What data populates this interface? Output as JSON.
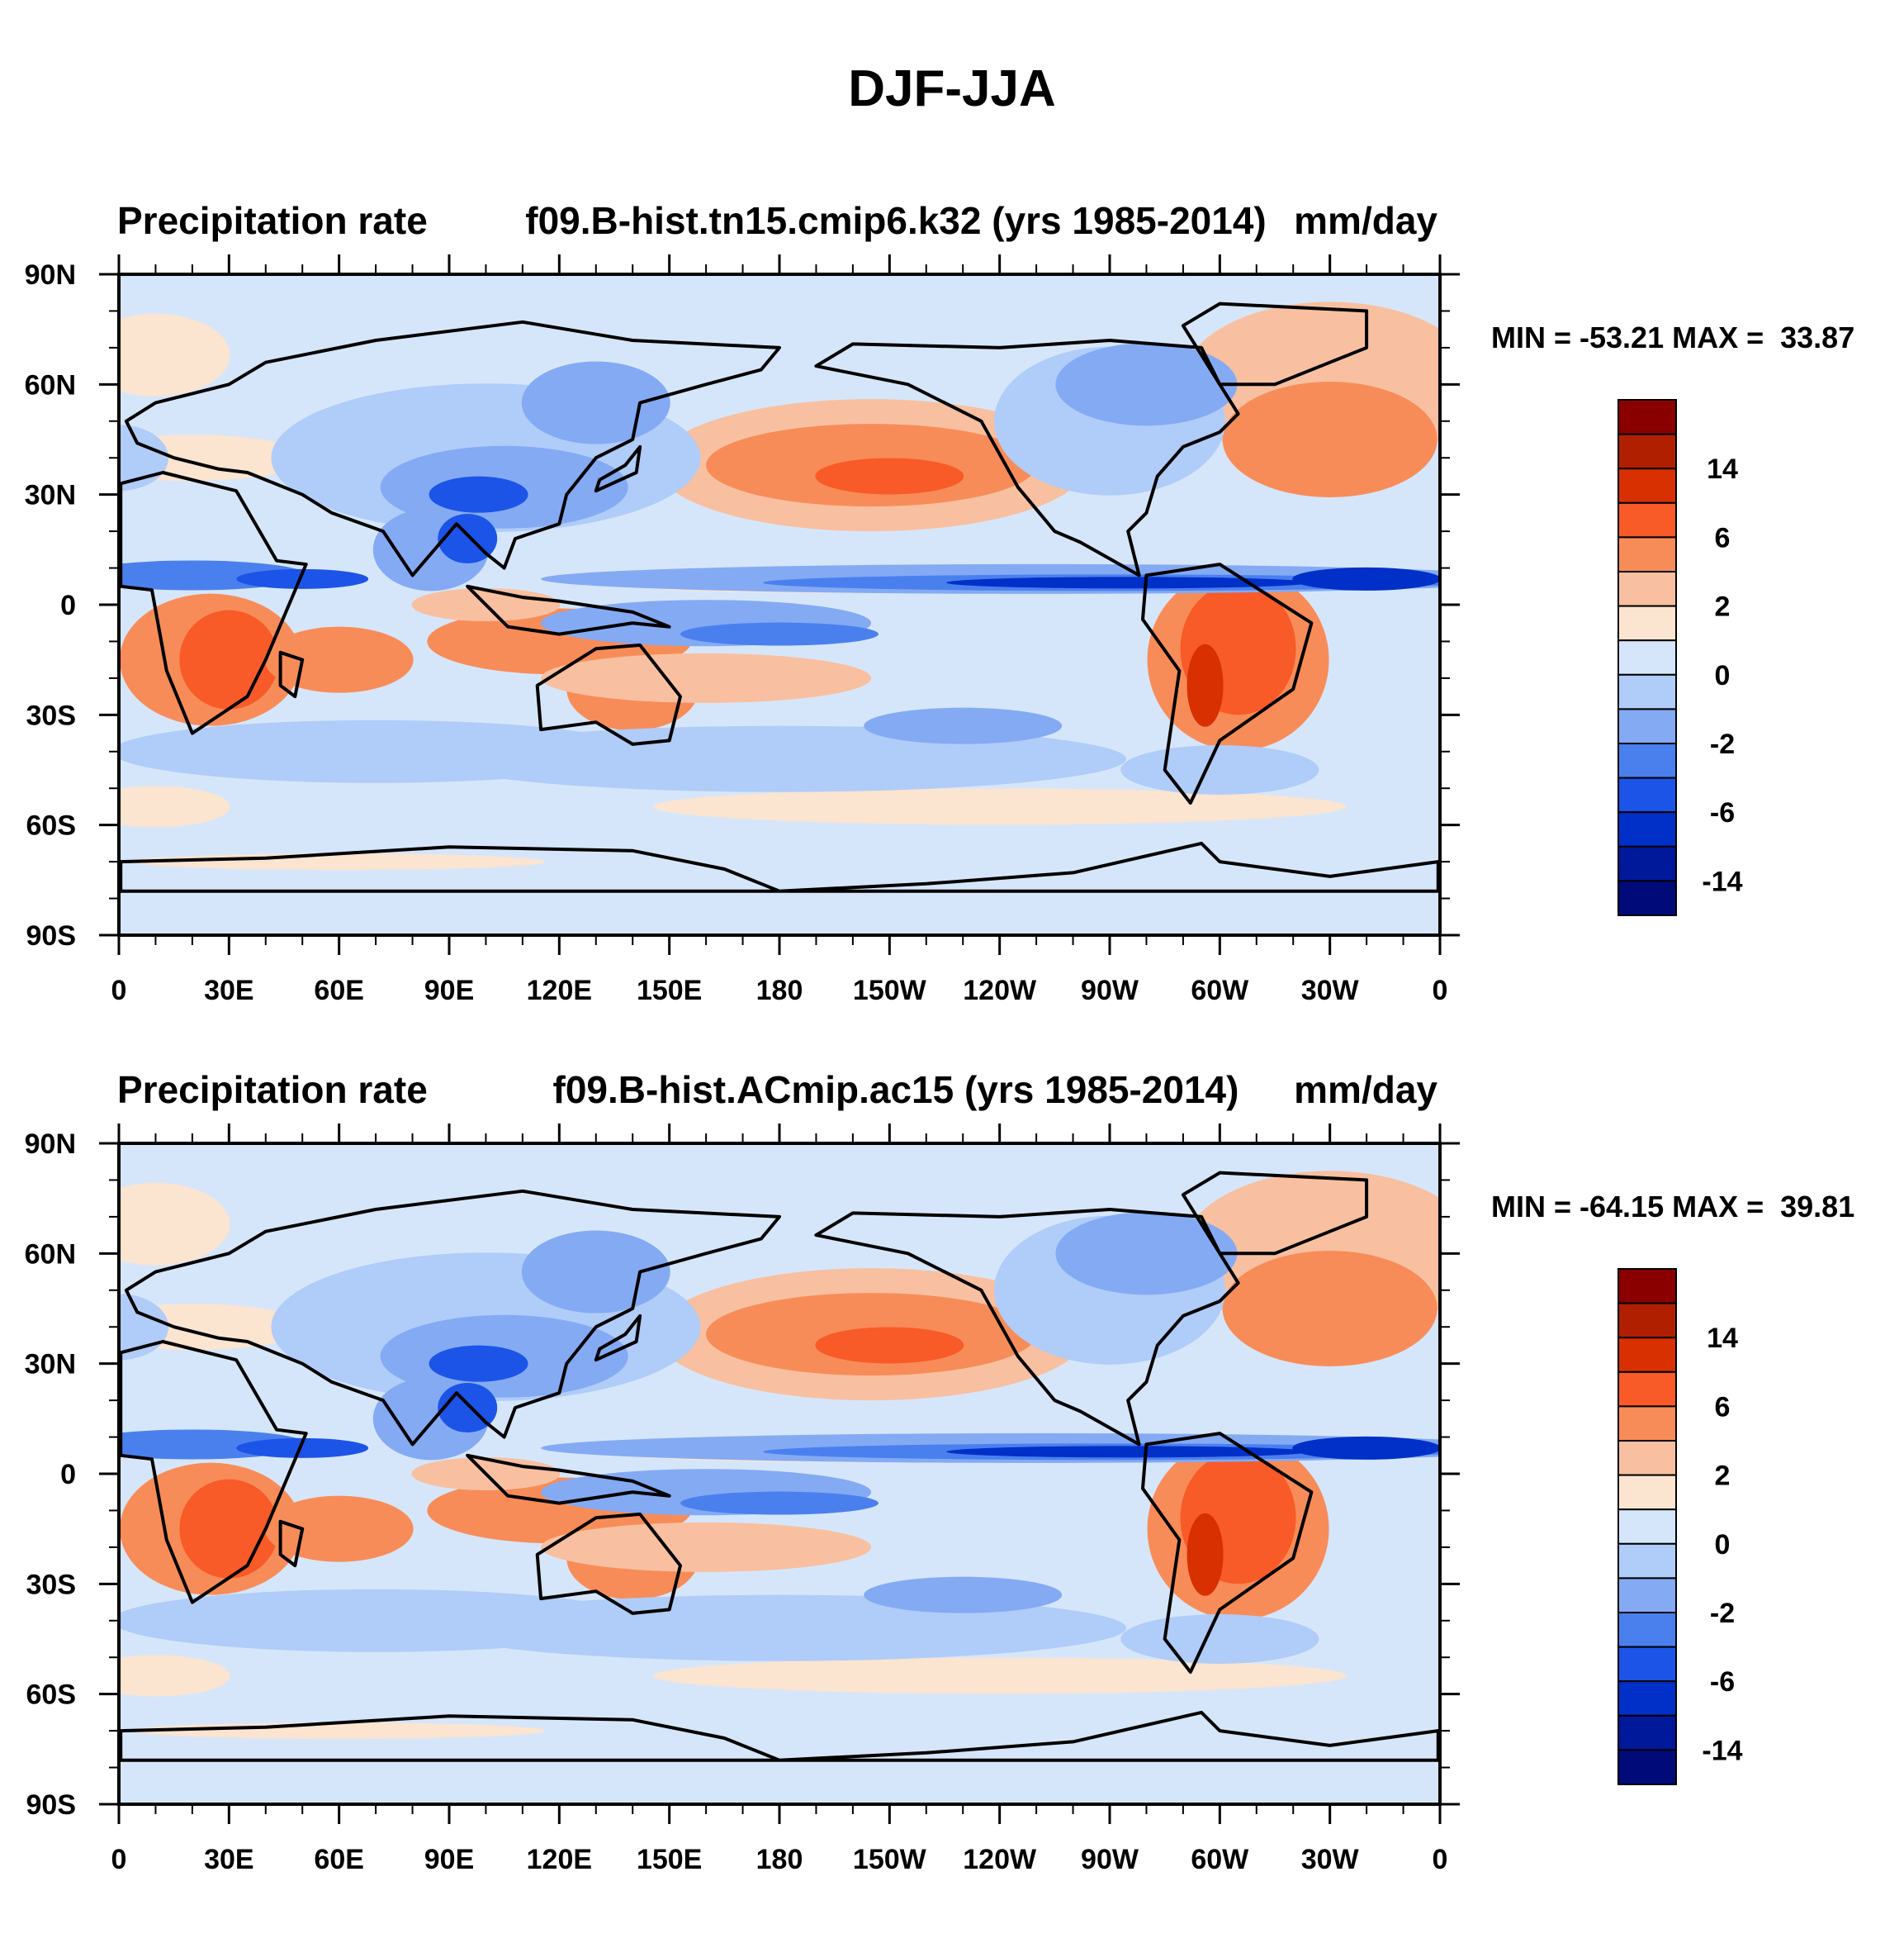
{
  "title": "DJF-JJA",
  "chart_data": [
    {
      "type": "heatmap",
      "left_label": "Precipitation rate",
      "center_label": "f09.B-hist.tn15.cmip6.k32 (yrs 1985-2014)",
      "units": "mm/day",
      "minmax": "MIN = -53.21 MAX =  33.87",
      "min": -53.21,
      "max": 33.87,
      "x_ticks": [
        "0",
        "30E",
        "60E",
        "90E",
        "120E",
        "150E",
        "180",
        "150W",
        "120W",
        "90W",
        "60W",
        "30W",
        "0"
      ],
      "y_ticks": [
        "90N",
        "60N",
        "30N",
        "0",
        "30S",
        "60S",
        "90S"
      ],
      "colorbar_labels": [
        "14",
        "6",
        "2",
        "0",
        "-2",
        "-6",
        "-14"
      ]
    },
    {
      "type": "heatmap",
      "left_label": "Precipitation rate",
      "center_label": "f09.B-hist.ACmip.ac15 (yrs 1985-2014)",
      "units": "mm/day",
      "minmax": "MIN = -64.15 MAX =  39.81",
      "min": -64.15,
      "max": 39.81,
      "x_ticks": [
        "0",
        "30E",
        "60E",
        "90E",
        "120E",
        "150E",
        "180",
        "150W",
        "120W",
        "90W",
        "60W",
        "30W",
        "0"
      ],
      "y_ticks": [
        "90N",
        "60N",
        "30N",
        "0",
        "30S",
        "60S",
        "90S"
      ],
      "colorbar_labels": [
        "14",
        "6",
        "2",
        "0",
        "-2",
        "-6",
        "-14"
      ]
    }
  ],
  "colorbar_colors": [
    "#8a0000",
    "#b02000",
    "#d83000",
    "#f85a28",
    "#f88c58",
    "#f8c0a0",
    "#fbe4d0",
    "#d6e6fa",
    "#b0ccf8",
    "#84aaf4",
    "#4a80ee",
    "#1c54e8",
    "#0030c8",
    "#00189a",
    "#000a78"
  ]
}
